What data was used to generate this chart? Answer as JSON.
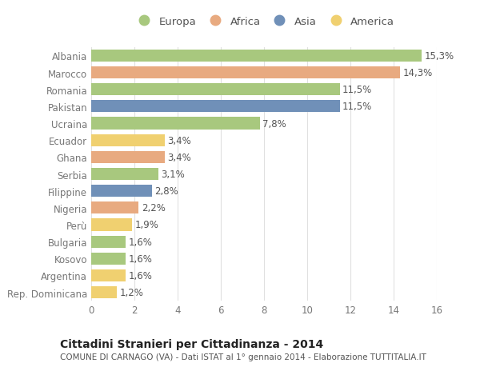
{
  "countries": [
    "Albania",
    "Marocco",
    "Romania",
    "Pakistan",
    "Ucraina",
    "Ecuador",
    "Ghana",
    "Serbia",
    "Filippine",
    "Nigeria",
    "Perù",
    "Bulgaria",
    "Kosovo",
    "Argentina",
    "Rep. Dominicana"
  ],
  "values": [
    15.3,
    14.3,
    11.5,
    11.5,
    7.8,
    3.4,
    3.4,
    3.1,
    2.8,
    2.2,
    1.9,
    1.6,
    1.6,
    1.6,
    1.2
  ],
  "labels": [
    "15,3%",
    "14,3%",
    "11,5%",
    "11,5%",
    "7,8%",
    "3,4%",
    "3,4%",
    "3,1%",
    "2,8%",
    "2,2%",
    "1,9%",
    "1,6%",
    "1,6%",
    "1,6%",
    "1,2%"
  ],
  "continents": [
    "Europa",
    "Africa",
    "Europa",
    "Asia",
    "Europa",
    "America",
    "Africa",
    "Europa",
    "Asia",
    "Africa",
    "America",
    "Europa",
    "Europa",
    "America",
    "America"
  ],
  "continent_colors": {
    "Europa": "#a8c87e",
    "Africa": "#e8aa80",
    "Asia": "#7090b8",
    "America": "#f0d070"
  },
  "legend_order": [
    "Europa",
    "Africa",
    "Asia",
    "America"
  ],
  "title_bold": "Cittadini Stranieri per Cittadinanza - 2014",
  "subtitle": "COMUNE DI CARNAGO (VA) - Dati ISTAT al 1° gennaio 2014 - Elaborazione TUTTITALIA.IT",
  "xlim": [
    0,
    16
  ],
  "xticks": [
    0,
    2,
    4,
    6,
    8,
    10,
    12,
    14,
    16
  ],
  "background_color": "#ffffff",
  "bar_height": 0.72,
  "grid_color": "#e0e0e0",
  "label_fontsize": 8.5,
  "tick_fontsize": 8.5,
  "legend_fontsize": 9.5,
  "title_fontsize": 10,
  "subtitle_fontsize": 7.5
}
